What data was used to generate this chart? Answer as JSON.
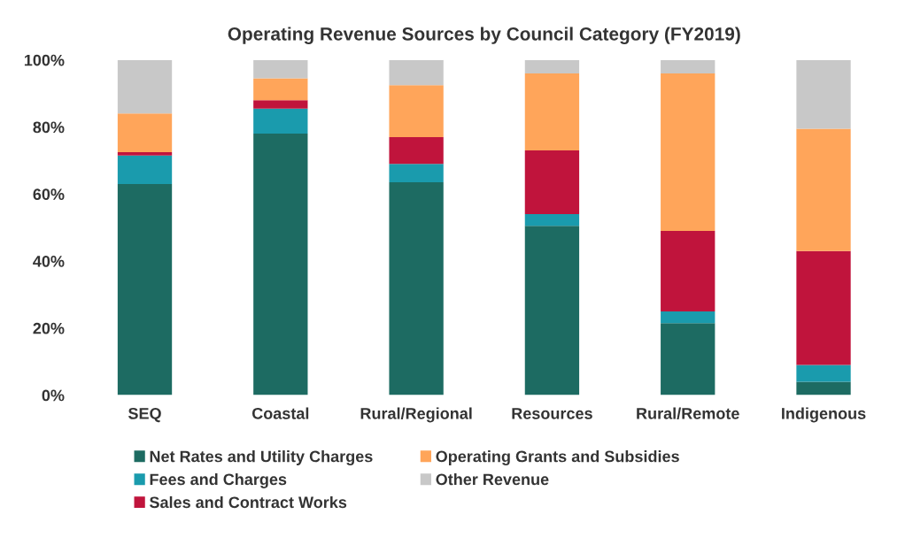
{
  "chart_data": {
    "type": "bar",
    "stacked": true,
    "title": "Operating Revenue Sources by Council Category (FY2019)",
    "categories": [
      "SEQ",
      "Coastal",
      "Rural/Regional",
      "Resources",
      "Rural/Remote",
      "Indigenous"
    ],
    "series": [
      {
        "name": "Net Rates and Utility Charges",
        "color": "#1d6b62",
        "values": [
          63,
          78,
          63.5,
          50.5,
          21.5,
          4
        ]
      },
      {
        "name": "Fees and Charges",
        "color": "#1a9bad",
        "values": [
          8.5,
          7.5,
          5.5,
          3.5,
          3.5,
          5
        ]
      },
      {
        "name": "Sales and Contract Works",
        "color": "#c0143c",
        "values": [
          1,
          2.5,
          8,
          19,
          24,
          34
        ]
      },
      {
        "name": "Operating Grants and Subsidies",
        "color": "#ffa55a",
        "values": [
          11.5,
          6.5,
          15.5,
          23,
          47,
          36.5
        ]
      },
      {
        "name": "Other Revenue",
        "color": "#c8c8c8",
        "values": [
          16,
          5.5,
          7.5,
          4,
          4,
          20.5
        ]
      }
    ],
    "ylim": [
      0,
      100
    ],
    "yticks": [
      {
        "value": 0,
        "label": "0%"
      },
      {
        "value": 20,
        "label": "20%"
      },
      {
        "value": 40,
        "label": "40%"
      },
      {
        "value": 60,
        "label": "60%"
      },
      {
        "value": 80,
        "label": "80%"
      },
      {
        "value": 100,
        "label": "100%"
      }
    ],
    "grid": false,
    "legend": "bottom"
  }
}
